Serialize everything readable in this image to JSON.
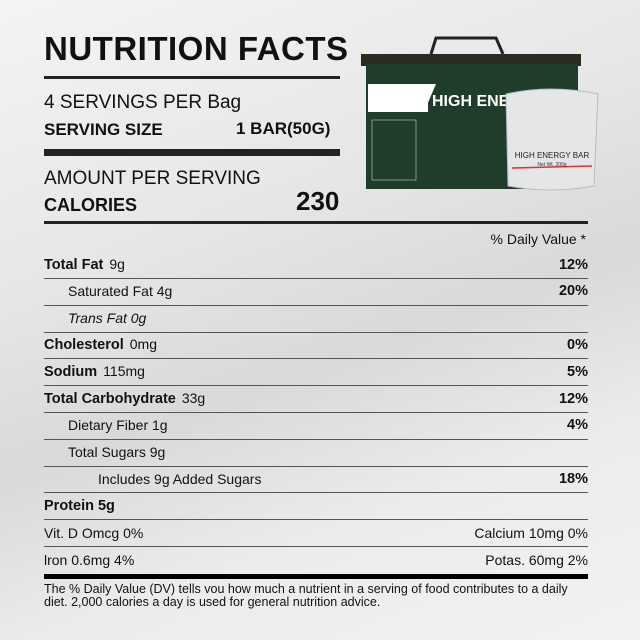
{
  "title": "NUTRITION FACTS",
  "servings_per": "4 SERVINGS PER  Bag",
  "serving_size_label": "SERVING SIZE",
  "serving_size_value": "1 BAR(50G)",
  "amount_per_serving": "AMOUNT PER SERVING",
  "calories_label": "CALORIES",
  "calories_value": "230",
  "daily_value_header": "% Daily Value *",
  "rows": [
    {
      "label": "Total Fat",
      "amount": "9g",
      "pct": "12%",
      "bold": true,
      "indent": 0
    },
    {
      "label": "Saturated Fat 4g",
      "amount": "",
      "pct": "20%",
      "bold": false,
      "indent": 1
    },
    {
      "label": "Trans Fat 0g",
      "amount": "",
      "pct": "",
      "bold": false,
      "indent": 1,
      "italic": true
    },
    {
      "label": "Cholesterol",
      "amount": "0mg",
      "pct": "0%",
      "bold": true,
      "indent": 0
    },
    {
      "label": "Sodium",
      "amount": "115mg",
      "pct": "5%",
      "bold": true,
      "indent": 0
    },
    {
      "label": "Total Carbohydrate",
      "amount": "33g",
      "pct": "12%",
      "bold": true,
      "indent": 0
    },
    {
      "label": "Dietary Fiber 1g",
      "amount": "",
      "pct": "4%",
      "bold": false,
      "indent": 1
    },
    {
      "label": "Total Sugars 9g",
      "amount": "",
      "pct": "",
      "bold": false,
      "indent": 1
    },
    {
      "label": "Includes 9g Added Sugars",
      "amount": "",
      "pct": "18%",
      "bold": false,
      "indent": 2
    },
    {
      "label": "Protein 5g",
      "amount": "",
      "pct": "",
      "bold": true,
      "indent": 0
    }
  ],
  "vitamins": [
    {
      "left": "Vit. D Omcg 0%",
      "right": "Calcium 10mg 0%"
    },
    {
      "left": "lron 0.6mg 4%",
      "right": "Potas. 60mg 2%"
    }
  ],
  "footnote": "The % Daily Value (DV) tells vou how much a nutrient in a serving of food contributes to a daily diet. 2,000 calories a day is used for general nutrition advice.",
  "product": {
    "box_label": "HIGH ENE",
    "bag_label": "HIGH ENERGY BAR",
    "bag_weight": "Net Wt. 200g",
    "box_color": "#1f3d2a"
  }
}
